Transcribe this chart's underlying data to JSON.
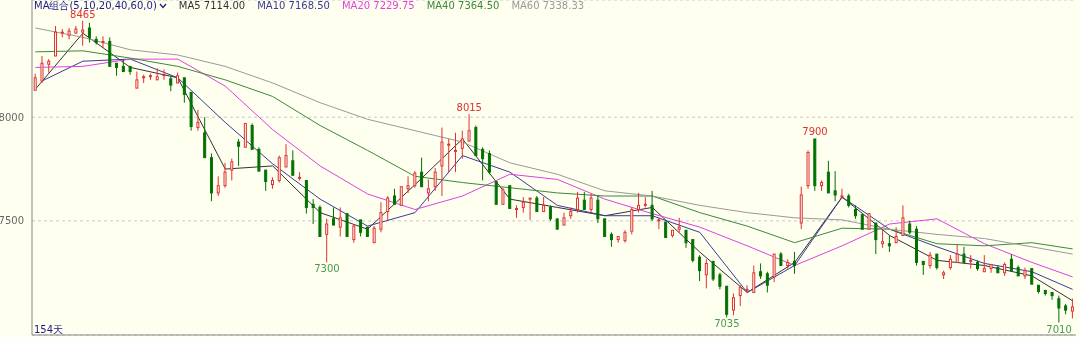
{
  "chart_data": {
    "type": "candlestick",
    "legend_title": "MA组合(5,10,20,40,60,0)",
    "legend": "top left",
    "grid": "y",
    "ylim": [
      6950,
      8565
    ],
    "yticks": [
      7500,
      8000
    ],
    "annotations": [
      {
        "text": "8465",
        "y": 8465
      },
      {
        "text": "7300",
        "y": 7300
      },
      {
        "text": "8015",
        "y": 8015
      },
      {
        "text": "7035",
        "y": 7035
      },
      {
        "text": "7900",
        "y": 7900
      },
      {
        "text": "7010",
        "y": 7010
      },
      "154天"
    ],
    "categories": [
      null,
      null,
      null,
      null,
      null,
      null,
      null,
      null,
      null,
      null,
      null,
      null,
      null,
      null,
      null,
      null,
      null,
      null,
      null,
      null,
      null,
      null,
      null,
      null,
      null,
      null,
      null,
      null,
      null,
      null,
      null,
      null,
      null,
      null,
      null,
      null,
      null,
      null,
      null,
      null,
      null,
      null,
      null,
      null,
      null,
      null,
      null,
      null,
      null,
      null,
      null,
      null,
      null,
      null,
      null,
      null,
      null,
      null,
      null,
      null,
      null,
      null,
      null,
      null,
      null,
      null,
      null,
      null,
      null,
      null,
      null,
      null,
      null,
      null,
      null,
      null,
      null,
      null,
      null,
      null,
      null,
      null,
      null,
      null,
      null,
      null,
      null,
      null,
      null,
      null,
      null,
      null,
      null,
      null,
      null,
      null,
      null,
      null,
      null,
      null,
      null,
      null,
      null,
      null,
      null,
      null,
      null,
      null,
      null,
      null,
      null,
      null,
      null,
      null,
      null,
      null,
      null,
      null,
      null,
      null,
      null,
      null,
      null,
      null,
      null,
      null,
      null,
      null,
      null,
      null,
      null,
      null,
      null,
      null,
      null,
      null,
      null,
      null,
      null,
      null,
      null,
      null,
      null,
      null,
      null,
      null,
      null,
      null,
      null,
      null,
      null,
      null,
      null,
      null
    ],
    "ohlc": [
      [
        8130,
        8210,
        8125,
        8190
      ],
      [
        8175,
        8295,
        8165,
        8260
      ],
      [
        8255,
        8280,
        8215,
        8270
      ],
      [
        8295,
        8440,
        8290,
        8410
      ],
      [
        8405,
        8425,
        8385,
        8410
      ],
      [
        8395,
        8430,
        8375,
        8415
      ],
      [
        8405,
        8440,
        8400,
        8425
      ],
      [
        8410,
        8465,
        8345,
        8420
      ],
      [
        8430,
        8455,
        8360,
        8385
      ],
      [
        8375,
        8390,
        8350,
        8360
      ],
      [
        8365,
        8390,
        8335,
        8365
      ],
      [
        8365,
        8385,
        8240,
        8245
      ],
      [
        8260,
        8265,
        8200,
        8240
      ],
      [
        8245,
        8280,
        8215,
        8220
      ],
      [
        8245,
        8245,
        8205,
        8220
      ],
      [
        8140,
        8220,
        8135,
        8180
      ],
      [
        8195,
        8205,
        8165,
        8195
      ],
      [
        8200,
        8210,
        8180,
        8200
      ],
      [
        8180,
        8235,
        8175,
        8195
      ],
      [
        8205,
        8230,
        8180,
        8205
      ],
      [
        8185,
        8200,
        8125,
        8155
      ],
      [
        8165,
        8215,
        8160,
        8200
      ],
      [
        8190,
        8195,
        8070,
        8110
      ],
      [
        8120,
        8125,
        7935,
        7955
      ],
      [
        7950,
        8035,
        7935,
        7975
      ],
      [
        7925,
        8000,
        7800,
        7805
      ],
      [
        7805,
        7825,
        7595,
        7635
      ],
      [
        7635,
        7715,
        7620,
        7670
      ],
      [
        7670,
        7780,
        7660,
        7735
      ],
      [
        7745,
        7800,
        7695,
        7785
      ],
      [
        7880,
        7895,
        7765,
        7860
      ],
      [
        7855,
        7975,
        7850,
        7970
      ],
      [
        7960,
        7970,
        7840,
        7845
      ],
      [
        7845,
        7855,
        7735,
        7740
      ],
      [
        7745,
        7750,
        7645,
        7690
      ],
      [
        7675,
        7710,
        7655,
        7695
      ],
      [
        7695,
        7815,
        7685,
        7805
      ],
      [
        7760,
        7870,
        7755,
        7815
      ],
      [
        7790,
        7840,
        7715,
        7720
      ],
      [
        7710,
        7735,
        7695,
        7710
      ],
      [
        7695,
        7700,
        7535,
        7565
      ],
      [
        7580,
        7605,
        7485,
        7565
      ],
      [
        7565,
        7575,
        7420,
        7425
      ],
      [
        7435,
        7510,
        7300,
        7485
      ],
      [
        7510,
        7565,
        7475,
        7480
      ],
      [
        7470,
        7565,
        7425,
        7515
      ],
      [
        7535,
        7540,
        7420,
        7425
      ],
      [
        7410,
        7485,
        7395,
        7475
      ],
      [
        7505,
        7510,
        7425,
        7445
      ],
      [
        7470,
        7475,
        7420,
        7425
      ],
      [
        7395,
        7475,
        7390,
        7465
      ],
      [
        7460,
        7590,
        7445,
        7540
      ],
      [
        7545,
        7620,
        7500,
        7610
      ],
      [
        7620,
        7655,
        7575,
        7580
      ],
      [
        7575,
        7670,
        7570,
        7665
      ],
      [
        7655,
        7715,
        7635,
        7670
      ],
      [
        7670,
        7740,
        7660,
        7730
      ],
      [
        7735,
        7805,
        7660,
        7665
      ],
      [
        7635,
        7700,
        7595,
        7655
      ],
      [
        7665,
        7755,
        7645,
        7735
      ],
      [
        7765,
        7950,
        7620,
        7880
      ],
      [
        7870,
        7895,
        7735,
        7870
      ],
      [
        7840,
        7925,
        7735,
        7840
      ],
      [
        7850,
        7935,
        7800,
        7895
      ],
      [
        7885,
        8015,
        7880,
        7935
      ],
      [
        7950,
        7960,
        7810,
        7815
      ],
      [
        7845,
        7855,
        7695,
        7800
      ],
      [
        7825,
        7840,
        7725,
        7735
      ],
      [
        7690,
        7695,
        7575,
        7580
      ],
      [
        7580,
        7660,
        7575,
        7650
      ],
      [
        7670,
        7675,
        7555,
        7560
      ],
      [
        7555,
        7575,
        7515,
        7560
      ],
      [
        7565,
        7615,
        7540,
        7590
      ],
      [
        7610,
        7615,
        7505,
        7610
      ],
      [
        7610,
        7620,
        7540,
        7545
      ],
      [
        7545,
        7615,
        7540,
        7575
      ],
      [
        7565,
        7575,
        7500,
        7510
      ],
      [
        7510,
        7515,
        7455,
        7460
      ],
      [
        7480,
        7540,
        7475,
        7515
      ],
      [
        7525,
        7565,
        7510,
        7545
      ],
      [
        7555,
        7640,
        7540,
        7610
      ],
      [
        7600,
        7640,
        7550,
        7555
      ],
      [
        7555,
        7630,
        7540,
        7610
      ],
      [
        7600,
        7620,
        7490,
        7510
      ],
      [
        7510,
        7515,
        7420,
        7425
      ],
      [
        7435,
        7445,
        7375,
        7410
      ],
      [
        7410,
        7430,
        7395,
        7425
      ],
      [
        7405,
        7455,
        7395,
        7445
      ],
      [
        7450,
        7565,
        7435,
        7555
      ],
      [
        7555,
        7635,
        7540,
        7575
      ],
      [
        7575,
        7615,
        7565,
        7580
      ],
      [
        7575,
        7645,
        7500,
        7510
      ],
      [
        7505,
        7515,
        7460,
        7505
      ],
      [
        7495,
        7500,
        7415,
        7420
      ],
      [
        7430,
        7460,
        7420,
        7455
      ],
      [
        7460,
        7515,
        7445,
        7470
      ],
      [
        7455,
        7460,
        7370,
        7395
      ],
      [
        7410,
        7415,
        7300,
        7310
      ],
      [
        7325,
        7335,
        7210,
        7260
      ],
      [
        7240,
        7315,
        7175,
        7295
      ],
      [
        7305,
        7310,
        7210,
        7220
      ],
      [
        7240,
        7250,
        7170,
        7185
      ],
      [
        7185,
        7190,
        7035,
        7050
      ],
      [
        7070,
        7150,
        7045,
        7130
      ],
      [
        7140,
        7190,
        7090,
        7180
      ],
      [
        7170,
        7190,
        7155,
        7170
      ],
      [
        7155,
        7285,
        7150,
        7250
      ],
      [
        7255,
        7295,
        7220,
        7235
      ],
      [
        7245,
        7255,
        7155,
        7190
      ],
      [
        7230,
        7345,
        7205,
        7340
      ],
      [
        7340,
        7350,
        7280,
        7285
      ],
      [
        7285,
        7315,
        7270,
        7300
      ],
      [
        7305,
        7350,
        7245,
        7285
      ],
      [
        7490,
        7665,
        7460,
        7625
      ],
      [
        7670,
        7840,
        7655,
        7830
      ],
      [
        7895,
        7900,
        7645,
        7670
      ],
      [
        7670,
        7695,
        7645,
        7685
      ],
      [
        7735,
        7790,
        7630,
        7635
      ],
      [
        7645,
        7740,
        7595,
        7625
      ],
      [
        7620,
        7655,
        7605,
        7620
      ],
      [
        7620,
        7630,
        7565,
        7575
      ],
      [
        7555,
        7575,
        7510,
        7525
      ],
      [
        7530,
        7535,
        7455,
        7460
      ],
      [
        7460,
        7540,
        7455,
        7535
      ],
      [
        7490,
        7495,
        7340,
        7410
      ],
      [
        7390,
        7460,
        7370,
        7400
      ],
      [
        7390,
        7430,
        7350,
        7380
      ],
      [
        7395,
        7470,
        7390,
        7425
      ],
      [
        7430,
        7575,
        7425,
        7515
      ],
      [
        7485,
        7500,
        7435,
        7445
      ],
      [
        7460,
        7475,
        7285,
        7300
      ],
      [
        7305,
        7310,
        7240,
        7290
      ],
      [
        7285,
        7350,
        7270,
        7335
      ],
      [
        7340,
        7345,
        7265,
        7275
      ],
      [
        7240,
        7260,
        7220,
        7250
      ],
      [
        7275,
        7335,
        7265,
        7315
      ],
      [
        7300,
        7385,
        7295,
        7340
      ],
      [
        7340,
        7375,
        7295,
        7300
      ],
      [
        7310,
        7335,
        7270,
        7310
      ],
      [
        7300,
        7310,
        7260,
        7270
      ],
      [
        7255,
        7335,
        7250,
        7270
      ],
      [
        7270,
        7295,
        7250,
        7290
      ],
      [
        7275,
        7285,
        7245,
        7250
      ],
      [
        7250,
        7300,
        7235,
        7290
      ],
      [
        7315,
        7340,
        7255,
        7260
      ],
      [
        7275,
        7285,
        7230,
        7235
      ],
      [
        7235,
        7275,
        7220,
        7260
      ],
      [
        7270,
        7275,
        7190,
        7195
      ],
      [
        7190,
        7195,
        7150,
        7160
      ],
      [
        7165,
        7170,
        7140,
        7150
      ],
      [
        7155,
        7160,
        7120,
        7140
      ],
      [
        7125,
        7140,
        7010,
        7080
      ],
      [
        7090,
        7100,
        7050,
        7070
      ],
      [
        7065,
        7125,
        7030,
        7085
      ]
    ],
    "series": [
      {
        "name": "MA5 7114.00",
        "type": "line",
        "color": "#333333",
        "values": [
          8135,
          null,
          null,
          null,
          null,
          null,
          null,
          8405,
          null,
          null,
          null,
          null,
          null,
          null,
          8240,
          null,
          null,
          null,
          null,
          null,
          null,
          8190,
          null,
          null,
          null,
          null,
          null,
          null,
          7750,
          null,
          null,
          null,
          null,
          null,
          null,
          7765,
          null,
          null,
          null,
          null,
          null,
          null,
          7540,
          null,
          null,
          null,
          null,
          null,
          null,
          7460,
          null,
          null,
          null,
          null,
          null,
          null,
          7675,
          null,
          null,
          null,
          null,
          null,
          null,
          7895,
          null,
          null,
          null,
          null,
          null,
          null,
          7605,
          null,
          null,
          null,
          null,
          null,
          null,
          7565,
          null,
          null,
          null,
          null,
          null,
          null,
          7525,
          null,
          null,
          null,
          null,
          null,
          null,
          7565,
          null,
          null,
          null,
          null,
          null,
          null,
          7350,
          null,
          null,
          null,
          null,
          null,
          null,
          7155,
          null,
          null,
          null,
          null,
          null,
          null,
          7300,
          null,
          null,
          null,
          null,
          null,
          null,
          7615,
          null,
          null,
          null,
          null,
          null,
          null,
          7430,
          null,
          null,
          null,
          null,
          null,
          null,
          7310,
          null,
          null,
          null,
          null,
          null,
          null,
          7285,
          null,
          null,
          null,
          null,
          null,
          null,
          7235,
          null,
          null,
          null,
          null,
          null,
          7115
        ]
      },
      {
        "name": "MA10 7168.50",
        "type": "line",
        "color": "#3a3a9a",
        "values": [
          null,
          8175,
          null,
          null,
          null,
          null,
          null,
          8270,
          null,
          null,
          null,
          null,
          null,
          null,
          8280,
          null,
          null,
          null,
          null,
          null,
          null,
          8190,
          null,
          null,
          null,
          null,
          null,
          null,
          7975,
          null,
          null,
          null,
          null,
          null,
          null,
          7775,
          null,
          null,
          null,
          null,
          null,
          null,
          7605,
          null,
          null,
          null,
          null,
          null,
          null,
          7475,
          null,
          null,
          null,
          null,
          null,
          null,
          7540,
          null,
          null,
          null,
          null,
          null,
          null,
          7815,
          null,
          null,
          null,
          null,
          null,
          null,
          7735,
          null,
          null,
          null,
          null,
          null,
          null,
          7575,
          null,
          null,
          null,
          null,
          null,
          null,
          7525,
          null,
          null,
          null,
          null,
          null,
          null,
          7525,
          null,
          null,
          null,
          null,
          null,
          null,
          7445,
          null,
          null,
          null,
          null,
          null,
          null,
          7155,
          null,
          null,
          null,
          null,
          null,
          null,
          7285,
          null,
          null,
          null,
          null,
          null,
          null,
          7615,
          null,
          null,
          null,
          null,
          null,
          null,
          7460,
          null,
          null,
          null,
          null,
          null,
          null,
          7375,
          null,
          null,
          null,
          null,
          null,
          null,
          7295,
          null,
          null,
          null,
          null,
          null,
          null,
          7255,
          null,
          null,
          null,
          null,
          null,
          7170
        ]
      },
      {
        "name": "MA20 7229.75",
        "type": "line",
        "color": "#e040e0",
        "values": [
          8240,
          null,
          null,
          null,
          null,
          null,
          null,
          8245,
          null,
          null,
          null,
          null,
          null,
          null,
          8280,
          null,
          null,
          null,
          null,
          null,
          null,
          8280,
          null,
          null,
          null,
          null,
          null,
          null,
          8150,
          null,
          null,
          null,
          null,
          null,
          null,
          7940,
          null,
          null,
          null,
          null,
          null,
          null,
          7765,
          null,
          null,
          null,
          null,
          null,
          null,
          7630,
          null,
          null,
          null,
          null,
          null,
          null,
          7555,
          null,
          null,
          null,
          null,
          null,
          null,
          7620,
          null,
          null,
          null,
          null,
          null,
          null,
          7725,
          null,
          null,
          null,
          null,
          null,
          null,
          7700,
          null,
          null,
          null,
          null,
          null,
          null,
          7605,
          null,
          null,
          null,
          null,
          null,
          null,
          7535,
          null,
          null,
          null,
          null,
          null,
          null,
          7470,
          null,
          null,
          null,
          null,
          null,
          null,
          7380,
          null,
          null,
          null,
          null,
          null,
          null,
          7285,
          null,
          null,
          null,
          null,
          null,
          null,
          7380,
          null,
          null,
          null,
          null,
          null,
          null,
          7485,
          null,
          null,
          null,
          null,
          null,
          null,
          7510,
          null,
          null,
          null,
          null,
          null,
          null,
          7390,
          null,
          null,
          null,
          null,
          null,
          null,
          7300,
          null,
          null,
          null,
          null,
          null,
          7230
        ]
      },
      {
        "name": "MA40 7364.50",
        "type": "line",
        "color": "#3a8a3a",
        "values": [
          8315,
          null,
          null,
          null,
          null,
          null,
          null,
          8320,
          null,
          null,
          null,
          null,
          null,
          null,
          8285,
          null,
          null,
          null,
          null,
          null,
          null,
          8245,
          null,
          null,
          null,
          null,
          null,
          null,
          8180,
          null,
          null,
          null,
          null,
          null,
          null,
          8100,
          null,
          null,
          null,
          null,
          null,
          null,
          7960,
          null,
          null,
          null,
          null,
          null,
          null,
          7840,
          null,
          null,
          null,
          null,
          null,
          null,
          7715,
          null,
          null,
          null,
          null,
          null,
          null,
          7685,
          null,
          null,
          null,
          null,
          null,
          null,
          7660,
          null,
          null,
          null,
          null,
          null,
          null,
          7635,
          null,
          null,
          null,
          null,
          null,
          null,
          7620,
          null,
          null,
          null,
          null,
          null,
          null,
          7620,
          null,
          null,
          null,
          null,
          null,
          null,
          7540,
          null,
          null,
          null,
          null,
          null,
          null,
          7475,
          null,
          null,
          null,
          null,
          null,
          null,
          7395,
          null,
          null,
          null,
          null,
          null,
          null,
          7465,
          null,
          null,
          null,
          null,
          null,
          null,
          7460,
          null,
          null,
          null,
          null,
          null,
          null,
          7390,
          null,
          null,
          null,
          null,
          null,
          null,
          7380,
          null,
          null,
          null,
          null,
          null,
          null,
          7395,
          null,
          null,
          null,
          null,
          null,
          7365
        ]
      },
      {
        "name": "MA60 7338.33",
        "type": "line",
        "color": "#999999",
        "values": [
          8430,
          null,
          null,
          null,
          null,
          null,
          null,
          8385,
          null,
          null,
          null,
          null,
          null,
          null,
          8325,
          null,
          null,
          null,
          null,
          null,
          null,
          8300,
          null,
          null,
          null,
          null,
          null,
          null,
          8245,
          null,
          null,
          null,
          null,
          null,
          null,
          8165,
          null,
          null,
          null,
          null,
          null,
          null,
          8070,
          null,
          null,
          null,
          null,
          null,
          null,
          7990,
          null,
          null,
          null,
          null,
          null,
          null,
          7935,
          null,
          null,
          null,
          null,
          null,
          null,
          7880,
          null,
          null,
          null,
          null,
          null,
          null,
          7780,
          null,
          null,
          null,
          null,
          null,
          null,
          7725,
          null,
          null,
          null,
          null,
          null,
          null,
          7645,
          null,
          null,
          null,
          null,
          null,
          null,
          7620,
          null,
          null,
          null,
          null,
          null,
          null,
          7575,
          null,
          null,
          null,
          null,
          null,
          null,
          7540,
          null,
          null,
          null,
          null,
          null,
          null,
          7515,
          null,
          null,
          null,
          null,
          null,
          null,
          7505,
          null,
          null,
          null,
          null,
          null,
          null,
          7460,
          null,
          null,
          null,
          null,
          null,
          null,
          7435,
          null,
          null,
          null,
          null,
          null,
          null,
          7415,
          null,
          null,
          null,
          null,
          null,
          null,
          7375,
          null,
          null,
          null,
          null,
          null,
          7340
        ]
      }
    ]
  }
}
